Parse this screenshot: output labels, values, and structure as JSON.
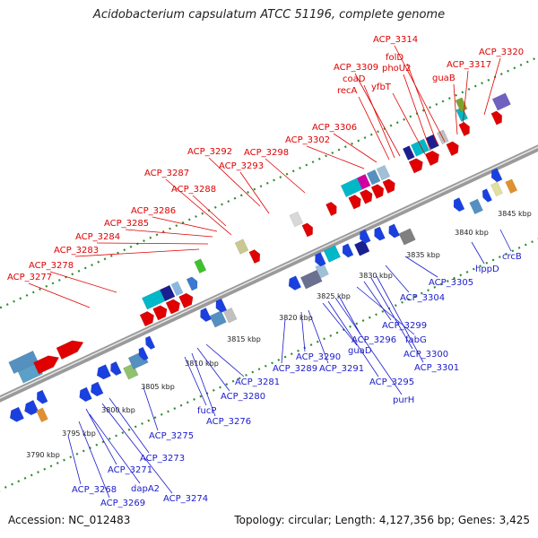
{
  "title": "Acidobacterium capsulatum ATCC 51196, complete genome",
  "footer": {
    "accession": "Accession: NC_012483",
    "topology": "Topology: circular; Length: 4,127,356 bp; Genes: 3,425"
  },
  "colors": {
    "forward_label": "#e00000",
    "reverse_label": "#1a1acc",
    "backbone": "#9a9a9a",
    "tick_dots": "#2e8b2e"
  },
  "ticks": [
    "3790 kbp",
    "3795 kbp",
    "3800 kbp",
    "3805 kbp",
    "3810 kbp",
    "3815 kbp",
    "3820 kbp",
    "3825 kbp",
    "3830 kbp",
    "3835 kbp",
    "3840 kbp",
    "3845 kbp"
  ],
  "forward_labels": [
    "ACP_3277",
    "ACP_3278",
    "ACP_3283",
    "ACP_3284",
    "ACP_3285",
    "ACP_3286",
    "ACP_3288",
    "ACP_3287",
    "ACP_3293",
    "ACP_3292",
    "ACP_3298",
    "ACP_3302",
    "ACP_3306",
    "recA",
    "coaD",
    "ACP_3309",
    "yfbT",
    "phoU2",
    "folD",
    "ACP_3314",
    "guaB",
    "ACP_3317",
    "ACP_3320"
  ],
  "reverse_labels": [
    "ACP_3268",
    "ACP_3269",
    "dapA2",
    "ACP_3271",
    "ACP_3274",
    "ACP_3273",
    "ACP_3275",
    "fucP",
    "ACP_3276",
    "ACP_3280",
    "ACP_3281",
    "ACP_3289",
    "ACP_3290",
    "ACP_3291",
    "guaD",
    "ACP_3295",
    "purH",
    "ACP_3296",
    "fabG",
    "ACP_3299",
    "ACP_3300",
    "ACP_3301",
    "ACP_3304",
    "ACP_3305",
    "hppD",
    "crcB"
  ]
}
